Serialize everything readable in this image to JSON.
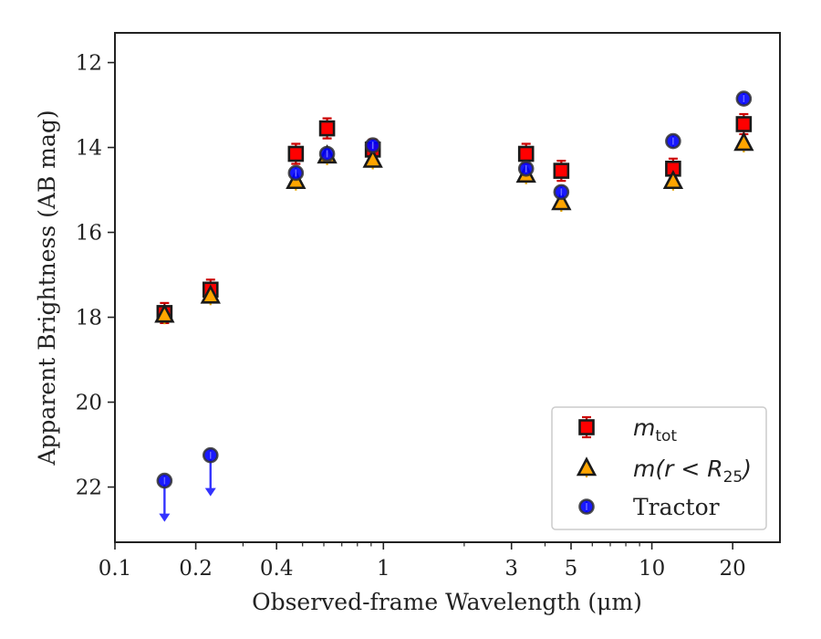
{
  "chart_data": {
    "type": "scatter",
    "xscale": "log",
    "xlabel": "Observed-frame Wavelength (μm)",
    "ylabel": "Apparent Brightness (AB mag)",
    "xlim": [
      0.1,
      30
    ],
    "ylim": [
      23.3,
      11.3
    ],
    "y_inverted": true,
    "x_ticks": [
      0.1,
      0.2,
      0.4,
      1,
      3,
      5,
      10,
      20
    ],
    "x_tick_labels": [
      "0.1",
      "0.2",
      "0.4",
      "1",
      "3",
      "5",
      "10",
      "20"
    ],
    "y_ticks": [
      12,
      14,
      16,
      18,
      20,
      22
    ],
    "y_tick_labels": [
      "12",
      "14",
      "16",
      "18",
      "20",
      "22"
    ],
    "legend_position": "lower-right",
    "series": [
      {
        "name": "m_tot",
        "legend_label_main": "m",
        "legend_label_sub": "tot",
        "marker": "square",
        "color": "#ff0000",
        "errorbar_color": "#cc0000",
        "x": [
          0.153,
          0.227,
          0.472,
          0.617,
          0.913,
          3.4,
          4.6,
          12.0,
          22.0
        ],
        "y": [
          17.9,
          17.35,
          14.15,
          13.55,
          14.05,
          14.15,
          14.55,
          14.5,
          13.45
        ]
      },
      {
        "name": "m(r<R25)",
        "legend_label_main": "m(r < R",
        "legend_label_sub": "25",
        "legend_label_tail": ")",
        "marker": "triangle",
        "color": "#ffa500",
        "errorbar_color": "#e8a800",
        "x": [
          0.153,
          0.227,
          0.472,
          0.617,
          0.913,
          3.4,
          4.6,
          12.0,
          22.0
        ],
        "y": [
          17.95,
          17.5,
          14.8,
          14.2,
          14.3,
          14.65,
          15.3,
          14.8,
          13.9
        ]
      },
      {
        "name": "Tractor",
        "legend_label_main": "Tractor",
        "marker": "circle",
        "color": "#0000ff",
        "errorbar_color": "#3030ff",
        "x": [
          0.153,
          0.227,
          0.472,
          0.617,
          0.913,
          3.4,
          4.6,
          12.0,
          22.0
        ],
        "y": [
          21.85,
          21.25,
          14.6,
          14.15,
          13.95,
          14.5,
          15.05,
          13.85,
          12.85
        ],
        "upper_limit": [
          true,
          true,
          false,
          false,
          false,
          false,
          false,
          false,
          false
        ]
      }
    ]
  }
}
